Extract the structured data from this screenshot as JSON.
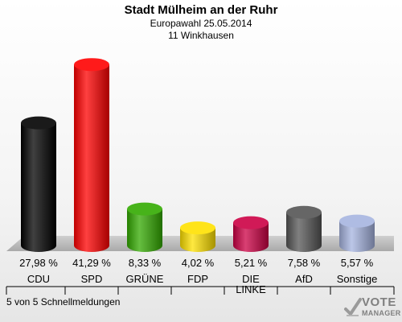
{
  "header": {
    "title": "Stadt Mülheim an der Ruhr",
    "subtitle": "Europawahl 25.05.2014",
    "district": "11 Winkhausen"
  },
  "footer": {
    "report_status": "5 von 5 Schnellmeldungen"
  },
  "logo": {
    "line1": "VOTE",
    "line2": "MANAGER"
  },
  "chart_data": {
    "type": "bar",
    "categories": [
      "CDU",
      "SPD",
      "GRÜNE",
      "FDP",
      "DIE LINKE",
      "AfD",
      "Sonstige"
    ],
    "values": [
      27.98,
      41.29,
      8.33,
      4.02,
      5.21,
      7.58,
      5.57
    ],
    "value_labels": [
      "27,98 %",
      "41,29 %",
      "8,33 %",
      "4,02 %",
      "5,21 %",
      "7,58 %",
      "5,57 %"
    ],
    "colors": [
      "#000000",
      "#ff0000",
      "#33aa00",
      "#ffe100",
      "#cc0044",
      "#555555",
      "#a6b4e0"
    ],
    "title": "Stadt Mülheim an der Ruhr",
    "xlabel": "",
    "ylabel": "",
    "ylim": [
      0,
      45
    ],
    "grid": false
  }
}
